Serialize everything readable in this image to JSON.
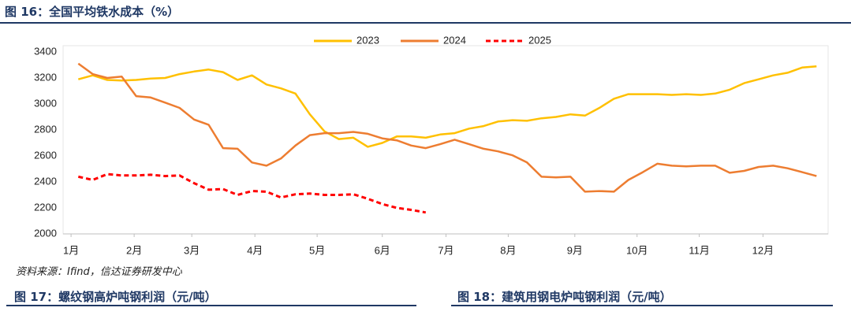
{
  "header": {
    "title": "图 16：全国平均铁水成本（%）"
  },
  "chart_data": {
    "type": "line",
    "x": [
      0.5,
      1.5,
      2.5,
      3.5,
      4.5,
      5.5,
      6.5,
      7.5,
      8.5,
      9.5,
      10.5,
      11.5,
      12.5,
      13.5,
      14.5,
      15.5,
      16.5,
      17.5,
      18.5,
      19.5,
      20.5,
      21.5,
      22.5,
      23.5,
      24.5,
      25.5,
      26.5,
      27.5,
      28.5,
      29.5,
      30.5,
      31.5,
      32.5,
      33.5,
      34.5,
      35.5,
      36.5,
      37.5,
      38.5,
      39.5,
      40.5,
      41.5,
      42.5,
      43.5,
      44.5,
      45.5,
      46.5,
      47.5,
      48.5,
      49.5,
      50.5,
      51.5
    ],
    "xlim": [
      -0.55,
      52.3
    ],
    "xticks": [
      {
        "value": 0,
        "label": "1月"
      },
      {
        "value": 4.36,
        "label": "2月"
      },
      {
        "value": 8.34,
        "label": "3月"
      },
      {
        "value": 12.7,
        "label": "4月"
      },
      {
        "value": 17.0,
        "label": "5月"
      },
      {
        "value": 21.5,
        "label": "6月"
      },
      {
        "value": 25.9,
        "label": "7月"
      },
      {
        "value": 30.2,
        "label": "8月"
      },
      {
        "value": 34.8,
        "label": "9月"
      },
      {
        "value": 39.1,
        "label": "10月"
      },
      {
        "value": 43.4,
        "label": "11月"
      },
      {
        "value": 47.8,
        "label": "12月"
      }
    ],
    "ylim": [
      2000,
      3400
    ],
    "yticks": [
      2000,
      2200,
      2400,
      2600,
      2800,
      3000,
      3200,
      3400
    ],
    "grid": false,
    "series": [
      {
        "name": "2023",
        "color": "#FFC000",
        "dashed": false,
        "values": [
          3190,
          3220,
          3185,
          3180,
          3185,
          3195,
          3200,
          3230,
          3250,
          3265,
          3245,
          3185,
          3220,
          3150,
          3120,
          3080,
          2920,
          2790,
          2730,
          2740,
          2670,
          2700,
          2750,
          2750,
          2740,
          2765,
          2775,
          2810,
          2830,
          2865,
          2875,
          2870,
          2890,
          2900,
          2920,
          2910,
          2970,
          3040,
          3075,
          3075,
          3075,
          3070,
          3075,
          3070,
          3080,
          3110,
          3160,
          3190,
          3220,
          3240,
          3280,
          3290
        ]
      },
      {
        "name": "2024",
        "color": "#ED7D31",
        "dashed": false,
        "values": [
          3310,
          3230,
          3200,
          3210,
          3060,
          3050,
          3010,
          2970,
          2880,
          2840,
          2660,
          2655,
          2550,
          2525,
          2580,
          2680,
          2760,
          2775,
          2775,
          2785,
          2770,
          2735,
          2720,
          2680,
          2660,
          2690,
          2725,
          2690,
          2655,
          2635,
          2605,
          2550,
          2440,
          2435,
          2440,
          2325,
          2330,
          2325,
          2415,
          2475,
          2540,
          2525,
          2520,
          2525,
          2525,
          2470,
          2485,
          2515,
          2525,
          2505,
          2475,
          2445
        ]
      },
      {
        "name": "2025",
        "color": "#FF0000",
        "dashed": true,
        "values": [
          2440,
          2415,
          2460,
          2450,
          2450,
          2455,
          2445,
          2450,
          2390,
          2340,
          2345,
          2300,
          2330,
          2325,
          2280,
          2305,
          2310,
          2300,
          2300,
          2305,
          2270,
          2230,
          2200,
          2185,
          2165,
          null,
          null,
          null,
          null,
          null,
          null,
          null,
          null,
          null,
          null,
          null,
          null,
          null,
          null,
          null,
          null,
          null,
          null,
          null,
          null,
          null,
          null,
          null,
          null,
          null,
          null,
          null
        ]
      }
    ]
  },
  "source": "资料来源：Ifind，信达证券研发中心",
  "figures": [
    "图 17：螺纹钢高炉吨钢利润（元/吨）",
    "图 18：建筑用钢电炉吨钢利润（元/吨）"
  ]
}
